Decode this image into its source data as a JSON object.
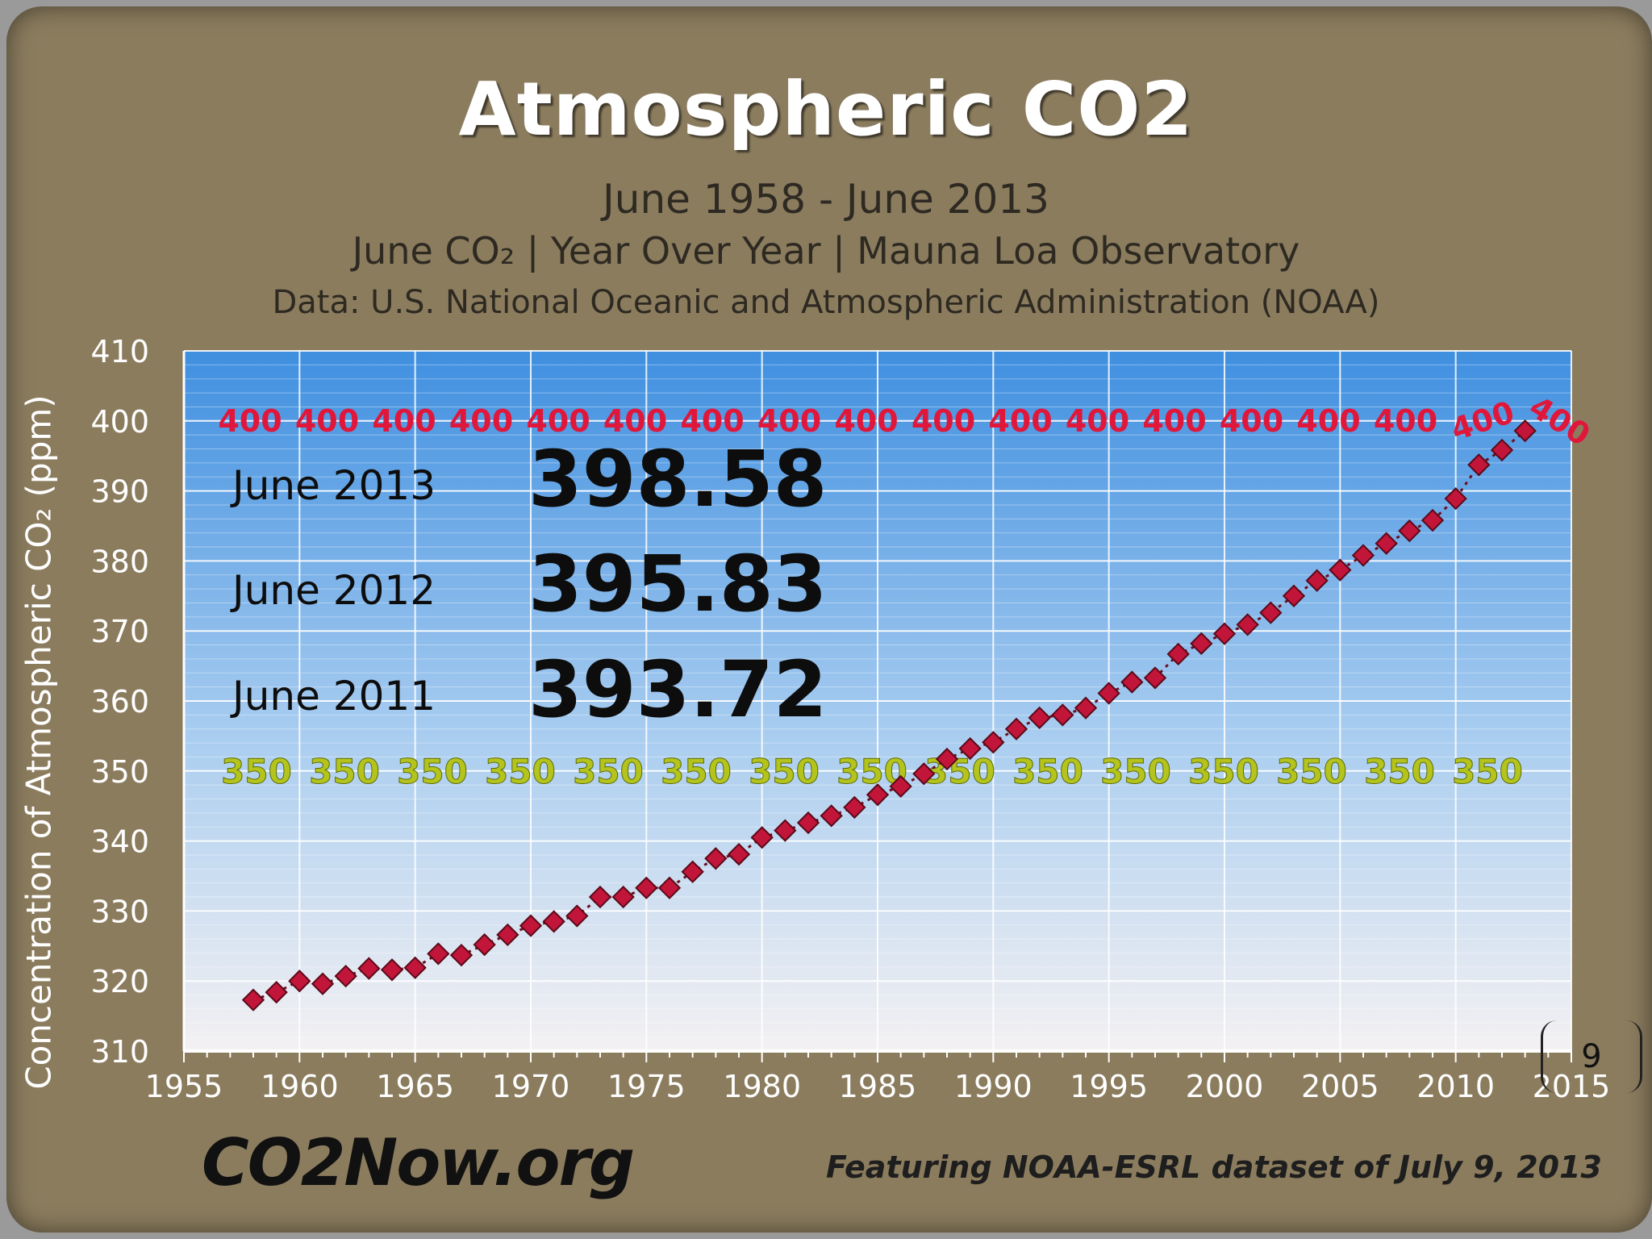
{
  "header": {
    "title": "Atmospheric CO2",
    "subtitle": "June 1958 - June 2013",
    "subtitle2": "June CO₂  |  Year Over Year  |  Mauna Loa Observatory",
    "source": "Data:  U.S. National Oceanic and Atmospheric Administration (NOAA)"
  },
  "footer": {
    "logo": "CO2Now.org",
    "featuring": "Featuring NOAA-ESRL dataset of July 9, 2013"
  },
  "slide": {
    "page_number": "9"
  },
  "colors": {
    "frame": "#8b7c5e",
    "plot_top": "#3f8fe0",
    "plot_bottom": "#f4f1f2",
    "marker": "#c2153a",
    "ref_400": "#e0173a",
    "ref_350": "#b4c41c"
  },
  "chart_data": {
    "type": "line",
    "title": "Atmospheric CO2",
    "subtitle": "June 1958 - June 2013",
    "xlabel": "",
    "ylabel": "Concentration of Atmospheric CO₂ (ppm)",
    "xlim": [
      1955,
      2015
    ],
    "ylim": [
      310,
      410
    ],
    "x_ticks": [
      1955,
      1960,
      1965,
      1970,
      1975,
      1980,
      1985,
      1990,
      1995,
      2000,
      2005,
      2010,
      2015
    ],
    "y_ticks": [
      310,
      320,
      330,
      340,
      350,
      360,
      370,
      380,
      390,
      400,
      410
    ],
    "grid": true,
    "series": [
      {
        "name": "June CO₂",
        "x": [
          1958,
          1959,
          1960,
          1961,
          1962,
          1963,
          1964,
          1965,
          1966,
          1967,
          1968,
          1969,
          1970,
          1971,
          1972,
          1973,
          1974,
          1975,
          1976,
          1977,
          1978,
          1979,
          1980,
          1981,
          1982,
          1983,
          1984,
          1985,
          1986,
          1987,
          1988,
          1989,
          1990,
          1991,
          1992,
          1993,
          1994,
          1995,
          1996,
          1997,
          1998,
          1999,
          2000,
          2001,
          2002,
          2003,
          2004,
          2005,
          2006,
          2007,
          2008,
          2009,
          2010,
          2011,
          2012,
          2013
        ],
        "values": [
          317.3,
          318.4,
          320.0,
          319.6,
          320.7,
          321.8,
          321.6,
          321.9,
          323.9,
          323.7,
          325.2,
          326.6,
          327.9,
          328.5,
          329.3,
          332.0,
          332.0,
          333.3,
          333.3,
          335.6,
          337.5,
          338.1,
          340.5,
          341.5,
          342.6,
          343.6,
          344.8,
          346.6,
          347.8,
          349.6,
          351.7,
          353.2,
          354.1,
          356.0,
          357.6,
          358.0,
          359.0,
          361.1,
          362.7,
          363.3,
          366.7,
          368.2,
          369.6,
          370.9,
          372.6,
          375.0,
          377.2,
          378.7,
          380.8,
          382.5,
          384.3,
          385.8,
          388.9,
          393.72,
          395.83,
          398.58
        ]
      }
    ],
    "reference_lines": [
      {
        "value": 400,
        "label": "400",
        "color": "#e0173a"
      },
      {
        "value": 350,
        "label": "350",
        "color": "#b4c41c"
      }
    ],
    "annotations": [
      {
        "label": "June 2013",
        "value": "398.58"
      },
      {
        "label": "June 2012",
        "value": "395.83"
      },
      {
        "label": "June 2011",
        "value": "393.72"
      }
    ]
  }
}
